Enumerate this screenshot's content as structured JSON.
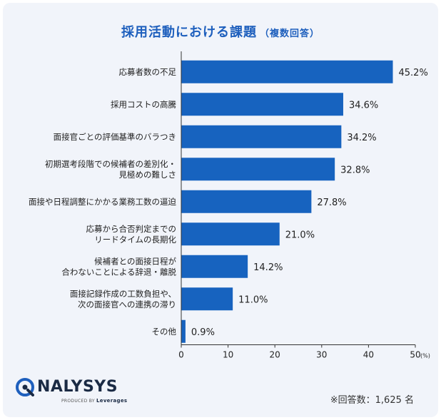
{
  "chart_data": {
    "type": "bar",
    "orientation": "horizontal",
    "title": "採用活動における課題",
    "subtitle": "（複数回答）",
    "categories": [
      [
        "応募者数の不足"
      ],
      [
        "採用コストの高騰"
      ],
      [
        "面接官ごとの評価基準のバラつき"
      ],
      [
        "初期選考段階での候補者の差別化・",
        "見極めの難しさ"
      ],
      [
        "面接や日程調整にかかる業務工数の逼迫"
      ],
      [
        "応募から合否判定までの",
        "リードタイムの長期化"
      ],
      [
        "候補者との面接日程が",
        "合わないことによる辞退・離脱"
      ],
      [
        "面接記録作成の工数負担や、",
        "次の面接官への連携の滞り"
      ],
      [
        "その他"
      ]
    ],
    "values": [
      45.2,
      34.6,
      34.2,
      32.8,
      27.8,
      21.0,
      14.2,
      11.0,
      0.9
    ],
    "value_labels": [
      "45.2%",
      "34.6%",
      "34.2%",
      "32.8%",
      "27.8%",
      "21.0%",
      "14.2%",
      "11.0%",
      "0.9%"
    ],
    "xlim": [
      0,
      50
    ],
    "xticks": [
      0,
      10,
      20,
      30,
      40,
      50
    ],
    "x_unit": "(%)",
    "bar_color": "#1763bf",
    "grid": false
  },
  "brand": {
    "name": "NALYSYS",
    "tagline_prefix": "PRODUCED BY",
    "tagline_company": "Leverages"
  },
  "note": "※回答数：1,625 名"
}
